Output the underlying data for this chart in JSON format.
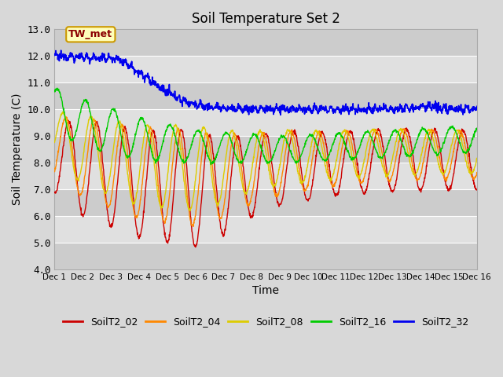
{
  "title": "Soil Temperature Set 2",
  "xlabel": "Time",
  "ylabel": "Soil Temperature (C)",
  "ylim": [
    4.0,
    13.0
  ],
  "xlim_days": 15,
  "series": {
    "SoilT2_02": {
      "color": "#cc0000",
      "lw": 1.0
    },
    "SoilT2_04": {
      "color": "#ff8800",
      "lw": 1.0
    },
    "SoilT2_08": {
      "color": "#ddcc00",
      "lw": 1.0
    },
    "SoilT2_16": {
      "color": "#00cc00",
      "lw": 1.0
    },
    "SoilT2_32": {
      "color": "#0000ee",
      "lw": 1.2
    }
  },
  "legend_order": [
    "SoilT2_02",
    "SoilT2_04",
    "SoilT2_08",
    "SoilT2_16",
    "SoilT2_32"
  ],
  "annotation_text": "TW_met",
  "bg_color": "#d8d8d8",
  "plot_bg_color": "#d8d8d8",
  "grid_color": "#ffffff",
  "yticks": [
    4.0,
    5.0,
    6.0,
    7.0,
    8.0,
    9.0,
    10.0,
    11.0,
    12.0,
    13.0
  ],
  "xtick_labels": [
    "Dec 1",
    "Dec 2",
    "Dec 3",
    "Dec 4",
    "Dec 5",
    "Dec 6",
    "Dec 7",
    "Dec 8",
    "Dec 9",
    "Dec 10",
    "Dec 11",
    "Dec 12",
    "Dec 13",
    "Dec 14",
    "Dec 15",
    "Dec 16"
  ]
}
